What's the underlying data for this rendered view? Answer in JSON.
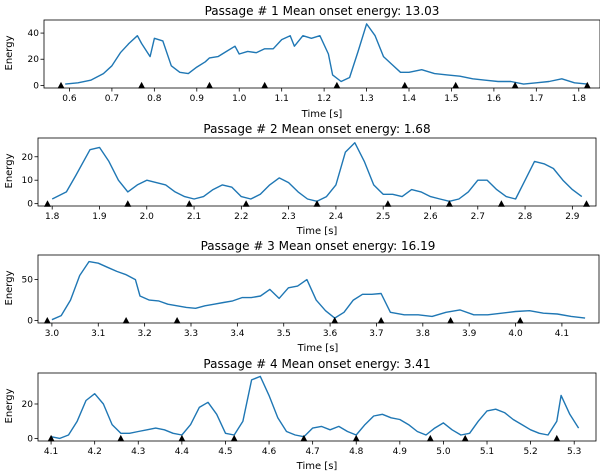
{
  "figure": {
    "line_color": "#1f77b4",
    "marker_color": "#000000"
  },
  "chart_data": [
    {
      "type": "line",
      "title": "Passage # 1    Mean onset energy: 13.03",
      "xlabel": "Time [s]",
      "ylabel": "Energy",
      "xlim": [
        0.54,
        1.85
      ],
      "ylim": [
        -2,
        50
      ],
      "xticks": [
        0.6,
        0.7,
        0.8,
        0.9,
        1.0,
        1.1,
        1.2,
        1.3,
        1.4,
        1.5,
        1.6,
        1.7,
        1.8
      ],
      "xtick_labels": [
        "0.6",
        "0.7",
        "0.8",
        "0.9",
        "1.0",
        "1.1",
        "1.2",
        "1.3",
        "1.4",
        "1.5",
        "1.6",
        "1.7",
        "1.8"
      ],
      "yticks": [
        0,
        20,
        40
      ],
      "ytick_labels": [
        "0",
        "20",
        "40"
      ],
      "series": [
        {
          "x": [
            0.59,
            0.62,
            0.65,
            0.68,
            0.7,
            0.72,
            0.74,
            0.76,
            0.77,
            0.79,
            0.8,
            0.82,
            0.84,
            0.86,
            0.88,
            0.9,
            0.92,
            0.93,
            0.95,
            0.97,
            0.99,
            1.0,
            1.02,
            1.04,
            1.06,
            1.08,
            1.1,
            1.12,
            1.13,
            1.15,
            1.17,
            1.19,
            1.21,
            1.22,
            1.24,
            1.26,
            1.28,
            1.3,
            1.32,
            1.34,
            1.36,
            1.38,
            1.4,
            1.43,
            1.46,
            1.49,
            1.52,
            1.55,
            1.58,
            1.61,
            1.64,
            1.67,
            1.7,
            1.73,
            1.76,
            1.79,
            1.82
          ],
          "y": [
            1,
            2,
            4,
            9,
            15,
            25,
            32,
            38,
            32,
            22,
            36,
            34,
            15,
            10,
            9,
            14,
            18,
            21,
            22,
            26,
            30,
            24,
            26,
            25,
            28,
            28,
            35,
            38,
            30,
            38,
            36,
            38,
            24,
            8,
            3,
            6,
            26,
            47,
            38,
            22,
            16,
            10,
            10,
            12,
            9,
            8,
            7,
            5,
            4,
            3,
            3,
            1,
            2,
            3,
            5,
            2,
            1
          ]
        }
      ],
      "onsets": [
        0.58,
        0.77,
        0.93,
        1.06,
        1.23,
        1.39,
        1.51,
        1.65,
        1.82
      ]
    },
    {
      "type": "line",
      "title": "Passage # 2    Mean onset energy: 1.68",
      "xlabel": "Time [s]",
      "ylabel": "Energy",
      "xlim": [
        1.77,
        2.95
      ],
      "ylim": [
        -1,
        28
      ],
      "xticks": [
        1.8,
        1.9,
        2.0,
        2.1,
        2.2,
        2.3,
        2.4,
        2.5,
        2.6,
        2.7,
        2.8,
        2.9
      ],
      "xtick_labels": [
        "1.8",
        "1.9",
        "2.0",
        "2.1",
        "2.2",
        "2.3",
        "2.4",
        "2.5",
        "2.6",
        "2.7",
        "2.8",
        "2.9"
      ],
      "yticks": [
        0,
        10,
        20
      ],
      "ytick_labels": [
        "0",
        "10",
        "20"
      ],
      "series": [
        {
          "x": [
            1.8,
            1.83,
            1.85,
            1.88,
            1.9,
            1.92,
            1.94,
            1.96,
            1.98,
            2.0,
            2.02,
            2.04,
            2.06,
            2.08,
            2.1,
            2.12,
            2.14,
            2.16,
            2.18,
            2.2,
            2.22,
            2.24,
            2.26,
            2.28,
            2.3,
            2.32,
            2.34,
            2.36,
            2.38,
            2.4,
            2.42,
            2.44,
            2.46,
            2.48,
            2.5,
            2.52,
            2.54,
            2.56,
            2.58,
            2.6,
            2.62,
            2.64,
            2.66,
            2.68,
            2.7,
            2.72,
            2.74,
            2.76,
            2.78,
            2.8,
            2.82,
            2.84,
            2.86,
            2.88,
            2.9,
            2.92
          ],
          "y": [
            2,
            5,
            12,
            23,
            24,
            18,
            10,
            5,
            8,
            10,
            9,
            8,
            5,
            3,
            2,
            3,
            6,
            8,
            7,
            3,
            2,
            4,
            8,
            11,
            9,
            5,
            2,
            1,
            3,
            8,
            22,
            26,
            18,
            8,
            4,
            4,
            3,
            6,
            5,
            3,
            2,
            1,
            2,
            5,
            10,
            10,
            6,
            3,
            2,
            10,
            18,
            17,
            15,
            10,
            6,
            3
          ]
        }
      ],
      "onsets": [
        1.79,
        1.96,
        2.09,
        2.21,
        2.36,
        2.51,
        2.64,
        2.75,
        2.93
      ]
    },
    {
      "type": "line",
      "title": "Passage # 3    Mean onset energy: 16.19",
      "xlabel": "Time [s]",
      "ylabel": "Energy",
      "xlim": [
        2.97,
        4.18
      ],
      "ylim": [
        -3,
        80
      ],
      "xticks": [
        3.0,
        3.1,
        3.2,
        3.3,
        3.4,
        3.5,
        3.6,
        3.7,
        3.8,
        3.9,
        4.0,
        4.1
      ],
      "xtick_labels": [
        "3.0",
        "3.1",
        "3.2",
        "3.3",
        "3.4",
        "3.5",
        "3.6",
        "3.7",
        "3.8",
        "3.9",
        "4.0",
        "4.1"
      ],
      "yticks": [
        0,
        50
      ],
      "ytick_labels": [
        "0",
        "50"
      ],
      "series": [
        {
          "x": [
            3.0,
            3.02,
            3.04,
            3.06,
            3.08,
            3.1,
            3.12,
            3.14,
            3.16,
            3.18,
            3.19,
            3.21,
            3.23,
            3.25,
            3.27,
            3.29,
            3.31,
            3.33,
            3.35,
            3.37,
            3.39,
            3.41,
            3.43,
            3.45,
            3.47,
            3.49,
            3.51,
            3.53,
            3.55,
            3.57,
            3.59,
            3.61,
            3.63,
            3.65,
            3.67,
            3.69,
            3.71,
            3.73,
            3.76,
            3.79,
            3.82,
            3.85,
            3.88,
            3.91,
            3.94,
            3.97,
            4.0,
            4.03,
            4.06,
            4.09,
            4.12,
            4.15
          ],
          "y": [
            1,
            6,
            25,
            55,
            72,
            70,
            65,
            60,
            56,
            50,
            30,
            25,
            24,
            20,
            18,
            16,
            15,
            18,
            20,
            22,
            24,
            28,
            28,
            30,
            38,
            27,
            40,
            42,
            50,
            25,
            12,
            3,
            10,
            25,
            32,
            32,
            33,
            10,
            7,
            7,
            5,
            10,
            13,
            7,
            7,
            9,
            11,
            12,
            9,
            8,
            5,
            3
          ]
        }
      ],
      "onsets": [
        2.99,
        3.16,
        3.27,
        3.61,
        3.71,
        3.86,
        4.01
      ]
    },
    {
      "type": "line",
      "title": "Passage # 4    Mean onset energy: 3.41",
      "xlabel": "Time [s]",
      "ylabel": "Energy",
      "xlim": [
        4.07,
        5.35
      ],
      "ylim": [
        -1.5,
        38
      ],
      "xticks": [
        4.1,
        4.2,
        4.3,
        4.4,
        4.5,
        4.6,
        4.7,
        4.8,
        4.9,
        5.0,
        5.1,
        5.2,
        5.3
      ],
      "xtick_labels": [
        "4.1",
        "4.2",
        "4.3",
        "4.4",
        "4.5",
        "4.6",
        "4.7",
        "4.8",
        "4.9",
        "5.0",
        "5.1",
        "5.2",
        "5.3"
      ],
      "yticks": [
        0,
        20
      ],
      "ytick_labels": [
        "0",
        "20"
      ],
      "series": [
        {
          "x": [
            4.1,
            4.12,
            4.14,
            4.16,
            4.18,
            4.2,
            4.22,
            4.24,
            4.26,
            4.28,
            4.3,
            4.32,
            4.34,
            4.36,
            4.38,
            4.4,
            4.42,
            4.44,
            4.46,
            4.48,
            4.5,
            4.52,
            4.54,
            4.56,
            4.58,
            4.6,
            4.62,
            4.64,
            4.66,
            4.68,
            4.7,
            4.72,
            4.74,
            4.76,
            4.78,
            4.8,
            4.82,
            4.84,
            4.86,
            4.88,
            4.9,
            4.92,
            4.94,
            4.96,
            4.98,
            5.0,
            5.02,
            5.04,
            5.06,
            5.08,
            5.1,
            5.12,
            5.14,
            5.16,
            5.18,
            5.2,
            5.22,
            5.24,
            5.26,
            5.27,
            5.29,
            5.31
          ],
          "y": [
            1,
            0,
            2,
            10,
            22,
            26,
            20,
            8,
            3,
            3,
            4,
            5,
            6,
            5,
            3,
            2,
            8,
            18,
            21,
            14,
            3,
            2,
            10,
            34,
            36,
            25,
            12,
            4,
            2,
            1,
            6,
            7,
            5,
            7,
            4,
            2,
            8,
            13,
            14,
            12,
            11,
            8,
            4,
            2,
            6,
            9,
            5,
            2,
            3,
            10,
            16,
            17,
            15,
            11,
            8,
            5,
            3,
            2,
            10,
            25,
            14,
            6
          ]
        }
      ],
      "onsets": [
        4.1,
        4.26,
        4.4,
        4.52,
        4.68,
        4.8,
        4.97,
        5.05,
        5.26
      ]
    }
  ]
}
